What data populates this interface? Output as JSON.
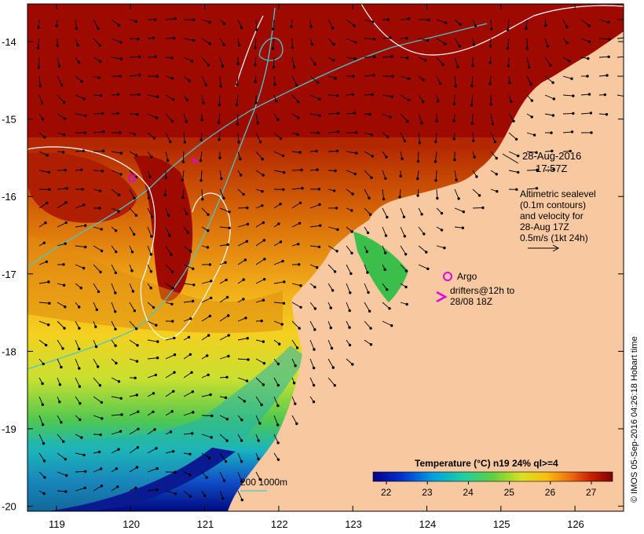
{
  "map": {
    "date": "28-Aug-2016",
    "time": "17:57Z",
    "altimetry_lines": [
      "Altimetric sealevel",
      "(0.1m contours)",
      "and velocity for",
      "28-Aug 17Z",
      "0.5m/s (1kt 24h)"
    ],
    "argo_label": "Argo",
    "drifter_lines": [
      "drifters@12h to",
      "28/08 18Z"
    ],
    "depth_legend": "200  1000m",
    "colorbar_title": "Temperature (°C) n19 24% ql>=4",
    "colorbar_ticks": [
      "22",
      "23",
      "24",
      "25",
      "26",
      "27"
    ],
    "credit": "© IMOS 05-Sep-2016 04:26:18 Hobart time",
    "lat_ticks": [
      "-14",
      "-15",
      "-16",
      "-17",
      "-18",
      "-19",
      "-20"
    ],
    "lon_ticks": [
      "119",
      "120",
      "121",
      "122",
      "123",
      "124",
      "125",
      "126"
    ],
    "lat_values": [
      -14,
      -15,
      -16,
      -17,
      -18,
      -19,
      -20
    ],
    "lon_values": [
      119,
      120,
      121,
      122,
      123,
      124,
      125,
      126
    ],
    "colors": {
      "land": "#f8c9a0",
      "warm": "#9e0a00",
      "isobath": "#48c8c8",
      "sealevel_contour": "#ffffff",
      "argo": "#e000e0"
    }
  }
}
